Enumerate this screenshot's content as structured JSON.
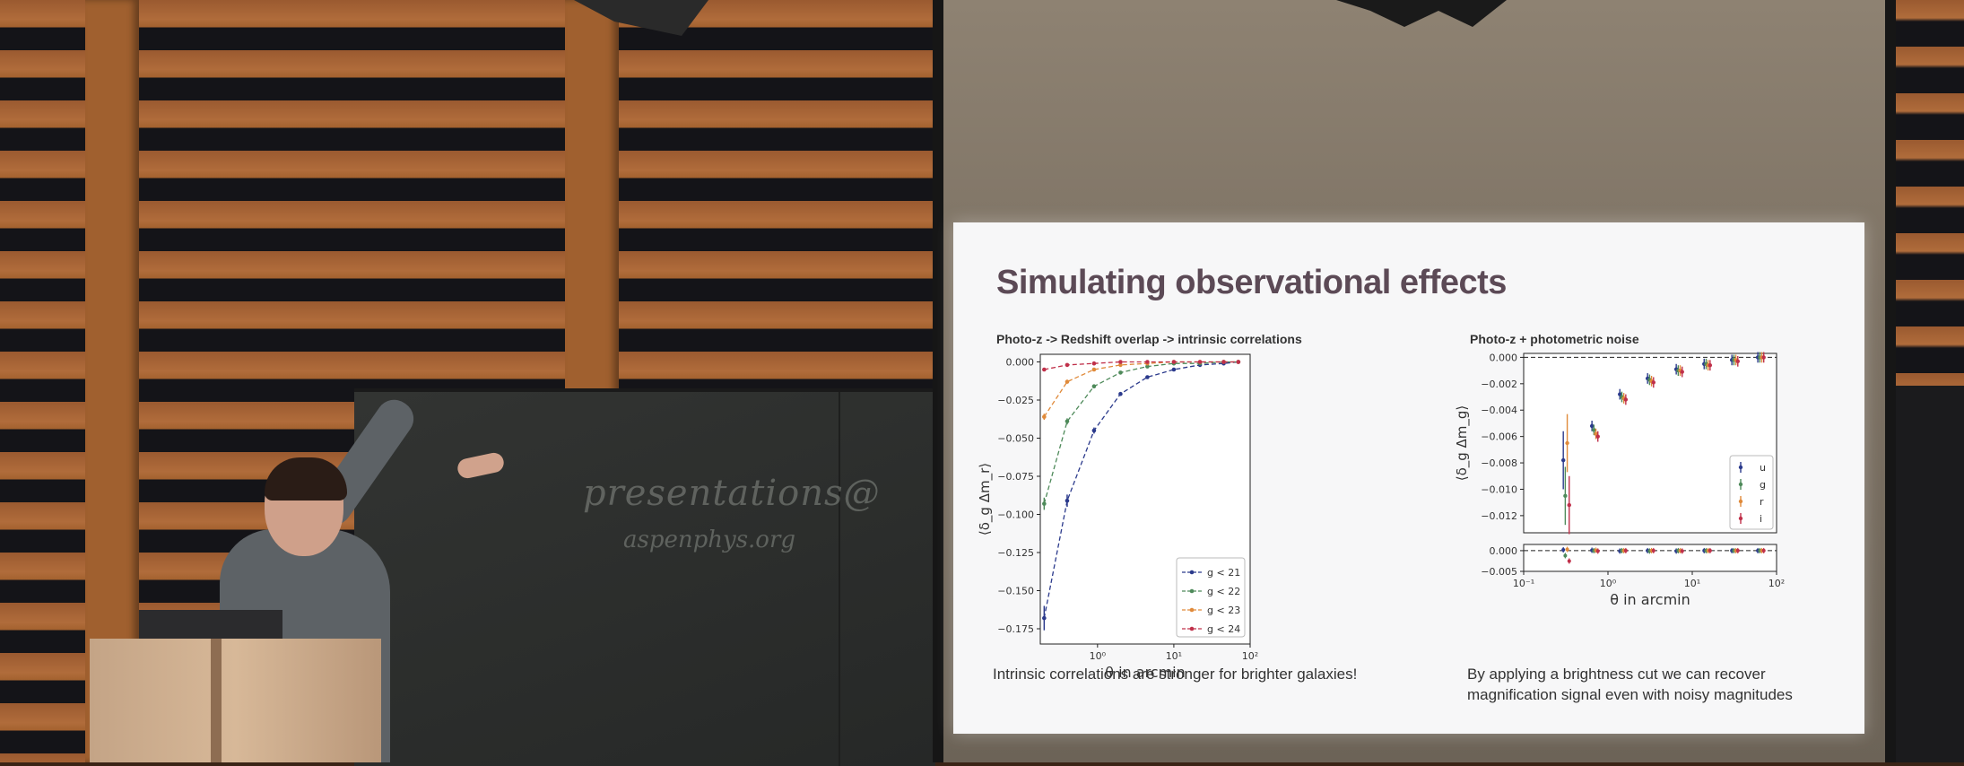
{
  "slide": {
    "title": "Simulating observational effects",
    "left_panel_title": "Photo-z -> Redshift overlap -> intrinsic correlations",
    "right_panel_title": "Photo-z + photometric noise",
    "left_caption": "Intrinsic correlations are stronger for brighter galaxies!",
    "right_caption_line1": "By applying a brightness cut we can recover",
    "right_caption_line2": "magnification signal even with noisy magnitudes"
  },
  "chalkboard": {
    "line1": "presentations@",
    "line2": "aspenphys.org"
  },
  "chart_data": [
    {
      "type": "line",
      "title": "Photo-z -> Redshift overlap -> intrinsic correlations",
      "xlabel": "θ in arcmin",
      "ylabel": "⟨δ_g Δm_r⟩",
      "xscale": "log",
      "xlim": [
        0.1778,
        100
      ],
      "ylim": [
        -0.185,
        0.005
      ],
      "x_ticks": [
        {
          "v": 1,
          "label": "10⁰"
        },
        {
          "v": 10,
          "label": "10¹"
        },
        {
          "v": 100,
          "label": "10²"
        }
      ],
      "y_ticks": [
        0.0,
        -0.025,
        -0.05,
        -0.075,
        -0.1,
        -0.125,
        -0.15,
        -0.175
      ],
      "y_tick_labels": [
        "0.000",
        "−0.025",
        "−0.050",
        "−0.075",
        "−0.100",
        "−0.125",
        "−0.150",
        "−0.175"
      ],
      "legend_position": "bottom-right",
      "x": [
        0.2,
        0.4,
        0.9,
        2,
        4.5,
        10,
        22,
        45,
        70
      ],
      "series": [
        {
          "name": "g < 21",
          "color": "#2b3a8c",
          "values": [
            -0.168,
            -0.091,
            -0.045,
            -0.021,
            -0.01,
            -0.005,
            -0.002,
            -0.001,
            0.0
          ],
          "err": [
            0.008,
            0.004,
            0.002,
            0.001,
            0.001,
            0.001,
            0.0,
            0.0,
            0.0
          ]
        },
        {
          "name": "g < 22",
          "color": "#4e8a5a",
          "values": [
            -0.093,
            -0.039,
            -0.016,
            -0.007,
            -0.003,
            -0.001,
            -0.001,
            0.0,
            0.0
          ],
          "err": [
            0.004,
            0.002,
            0.001,
            0.001,
            0.0,
            0.0,
            0.0,
            0.0,
            0.0
          ]
        },
        {
          "name": "g < 23",
          "color": "#e08a3a",
          "values": [
            -0.036,
            -0.013,
            -0.005,
            -0.002,
            -0.001,
            0.0,
            0.0,
            0.0,
            0.0
          ],
          "err": [
            0.002,
            0.001,
            0.0,
            0.0,
            0.0,
            0.0,
            0.0,
            0.0,
            0.0
          ]
        },
        {
          "name": "g < 24",
          "color": "#c0304a",
          "values": [
            -0.005,
            -0.002,
            -0.001,
            0.0,
            0.0,
            0.0,
            0.0,
            0.0,
            0.0
          ],
          "err": [
            0.001,
            0.0,
            0.0,
            0.0,
            0.0,
            0.0,
            0.0,
            0.0,
            0.0
          ]
        }
      ]
    },
    {
      "type": "scatter",
      "title": "Photo-z + photometric noise",
      "xlabel": "θ in arcmin",
      "ylabel": "⟨δ_g Δm_g⟩",
      "xscale": "log",
      "xlim": [
        0.1,
        100
      ],
      "ylim": [
        -0.0133,
        0.0003
      ],
      "residual_ylim": [
        -0.005,
        0.0015
      ],
      "x_ticks": [
        {
          "v": 0.1,
          "label": "10⁻¹"
        },
        {
          "v": 1,
          "label": "10⁰"
        },
        {
          "v": 10,
          "label": "10¹"
        },
        {
          "v": 100,
          "label": "10²"
        }
      ],
      "y_ticks": [
        0.0,
        -0.002,
        -0.004,
        -0.006,
        -0.008,
        -0.01,
        -0.012
      ],
      "y_tick_labels": [
        "0.000",
        "−0.002",
        "−0.004",
        "−0.006",
        "−0.008",
        "−0.010",
        "−0.012"
      ],
      "residual_y_ticks": [
        0.0,
        -0.005
      ],
      "residual_y_tick_labels": [
        "0.000",
        "−0.005"
      ],
      "legend_position": "right",
      "x": [
        0.32,
        0.7,
        1.5,
        3.2,
        7,
        15,
        32,
        65
      ],
      "series": [
        {
          "name": "u",
          "color": "#2b3a8c",
          "values": [
            -0.0078,
            -0.0052,
            -0.0028,
            -0.0016,
            -0.0009,
            -0.0005,
            -0.0002,
            0.0
          ],
          "residual": [
            0.0002,
            0.0001,
            -0.0001,
            0.0,
            -0.0001,
            0.0,
            0.0,
            0.0
          ]
        },
        {
          "name": "g",
          "color": "#4e8a5a",
          "values": [
            -0.0105,
            -0.0055,
            -0.003,
            -0.0017,
            -0.001,
            -0.0005,
            -0.0002,
            0.0
          ],
          "residual": [
            -0.0012,
            0.0,
            0.0,
            -0.0001,
            0.0,
            0.0,
            0.0,
            0.0
          ]
        },
        {
          "name": "r",
          "color": "#e08a3a",
          "values": [
            -0.0065,
            -0.0058,
            -0.0031,
            -0.0018,
            -0.001,
            -0.0006,
            -0.0002,
            0.0
          ],
          "residual": [
            0.0003,
            0.0001,
            0.0,
            0.0,
            0.0,
            0.0,
            0.0,
            0.0
          ]
        },
        {
          "name": "i",
          "color": "#c0304a",
          "values": [
            -0.0112,
            -0.006,
            -0.0032,
            -0.0019,
            -0.0011,
            -0.0006,
            -0.0003,
            0.0
          ],
          "residual": [
            -0.0025,
            -0.0001,
            0.0,
            0.0,
            -0.0001,
            0.0,
            0.0,
            0.0
          ]
        }
      ]
    }
  ]
}
